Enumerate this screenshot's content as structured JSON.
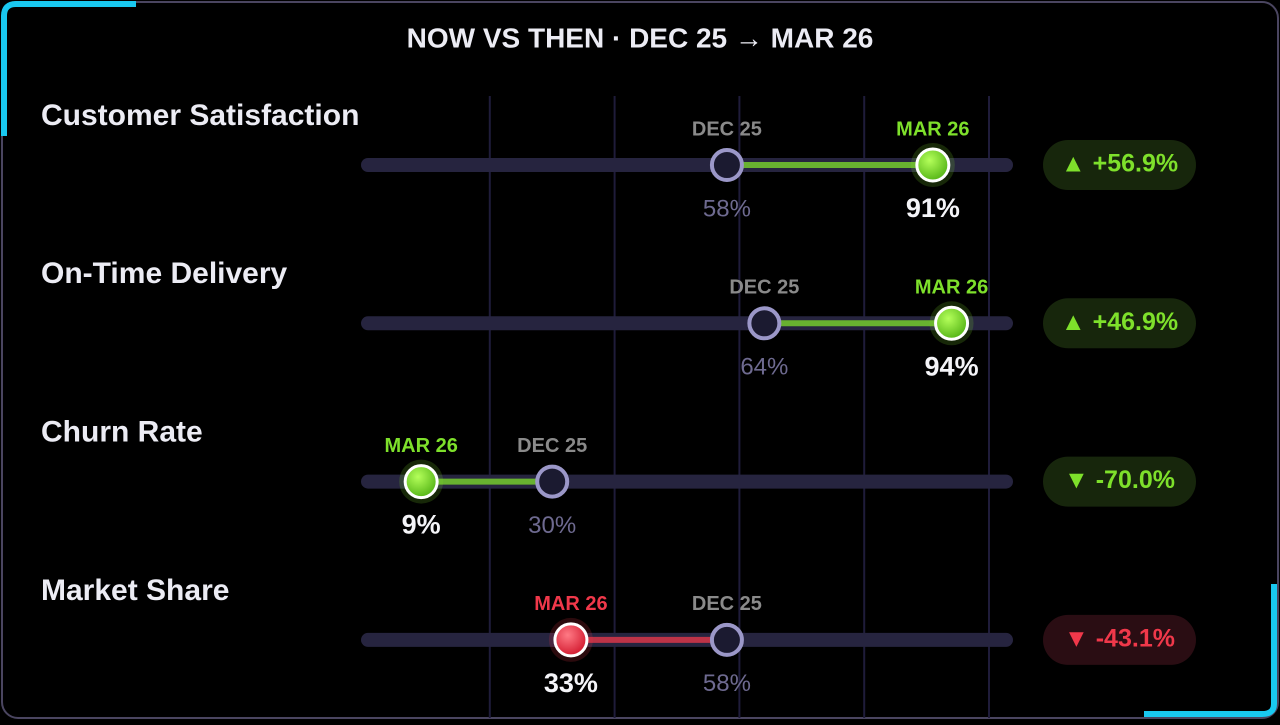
{
  "chart_data": {
    "type": "dumbbell",
    "title": "NOW VS THEN · DEC 25 → MAR 26",
    "categories": [
      "Customer Satisfaction",
      "On-Time Delivery",
      "Churn Rate",
      "Market Share"
    ],
    "series": [
      {
        "name": "DEC 25",
        "color": "#9b97c8",
        "values": [
          58,
          64,
          30,
          58
        ],
        "value_labels": [
          "58%",
          "64%",
          "30%",
          "58%"
        ]
      },
      {
        "name": "MAR 26",
        "color": "#7ee02b",
        "colors": [
          "#7ee02b",
          "#7ee02b",
          "#7ee02b",
          "#f0384a"
        ],
        "values": [
          91,
          94,
          9,
          33
        ],
        "value_labels": [
          "91%",
          "94%",
          "9%",
          "33%"
        ]
      }
    ],
    "changes": [
      56.9,
      46.9,
      -70.0,
      -43.1
    ],
    "change_labels": [
      "▲ +56.9%",
      "▲ +46.9%",
      "▼ -70.0%",
      "▼ -43.1%"
    ],
    "xlim": [
      0,
      100
    ],
    "xticks": [
      20,
      40,
      60,
      80,
      100
    ],
    "grid": true
  }
}
